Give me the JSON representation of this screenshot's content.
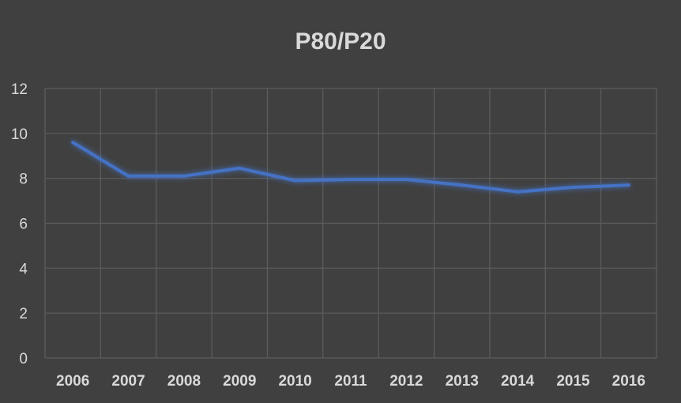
{
  "chart_data": {
    "type": "line",
    "title": "P80/P20",
    "xlabel": "",
    "ylabel": "",
    "categories": [
      "2006",
      "2007",
      "2008",
      "2009",
      "2010",
      "2011",
      "2012",
      "2013",
      "2014",
      "2015",
      "2016"
    ],
    "series": [
      {
        "values": [
          9.6,
          8.1,
          8.1,
          8.45,
          7.9,
          7.95,
          7.95,
          7.7,
          7.4,
          7.6,
          7.7
        ],
        "color": "#4472c4"
      }
    ],
    "ylim": [
      0,
      12
    ],
    "yticks": [
      "0",
      "2",
      "4",
      "6",
      "8",
      "10",
      "12"
    ],
    "grid": true,
    "legend": "none"
  },
  "colors": {
    "background": "#404040",
    "grid": "#5e5e5e",
    "text": "#d9d9d9",
    "line": "#4472c4"
  }
}
